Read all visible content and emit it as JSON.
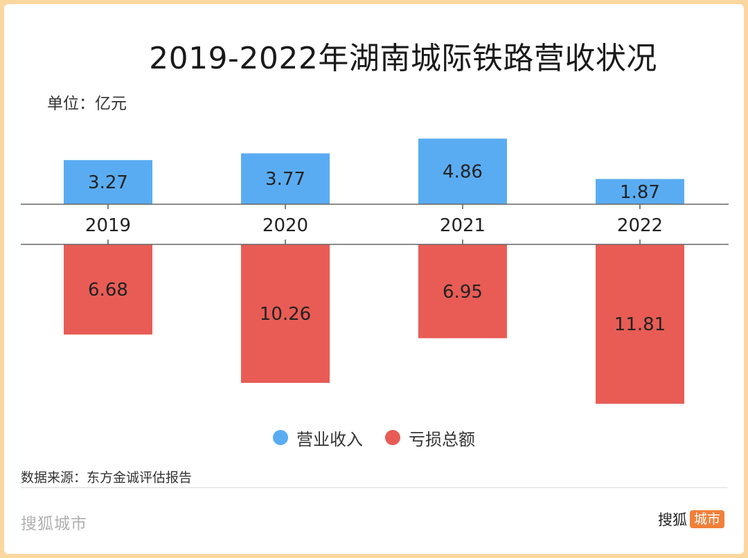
{
  "title": "2019-2022年湖南城际铁路营收状况",
  "unit": "单位：亿元",
  "chart_data": {
    "type": "bar",
    "title": "2019-2022年湖南城际铁路营收状况",
    "unit_label": "单位：亿元",
    "categories": [
      "2019",
      "2020",
      "2021",
      "2022"
    ],
    "series": [
      {
        "name": "营业收入",
        "values": [
          3.27,
          3.77,
          4.86,
          1.87
        ],
        "labels": [
          "3.27",
          "3.77",
          "4.86",
          "1.87"
        ],
        "color": "#5aacf2",
        "direction": "up"
      },
      {
        "name": "亏损总额",
        "values": [
          6.68,
          10.26,
          6.95,
          11.81
        ],
        "labels": [
          "6.68",
          "10.26",
          "6.95",
          "11.81"
        ],
        "color": "#e85c55",
        "direction": "down"
      }
    ],
    "legend_position": "bottom-center"
  },
  "legend": [
    {
      "label": "营业收入",
      "color": "#5aacf2"
    },
    {
      "label": "亏损总额",
      "color": "#e85c55"
    }
  ],
  "source": "数据来源：东方金诚评估报告",
  "footer": {
    "left_brand": "搜狐城市",
    "right_brand_main": "搜狐",
    "right_brand_badge": "城市"
  }
}
